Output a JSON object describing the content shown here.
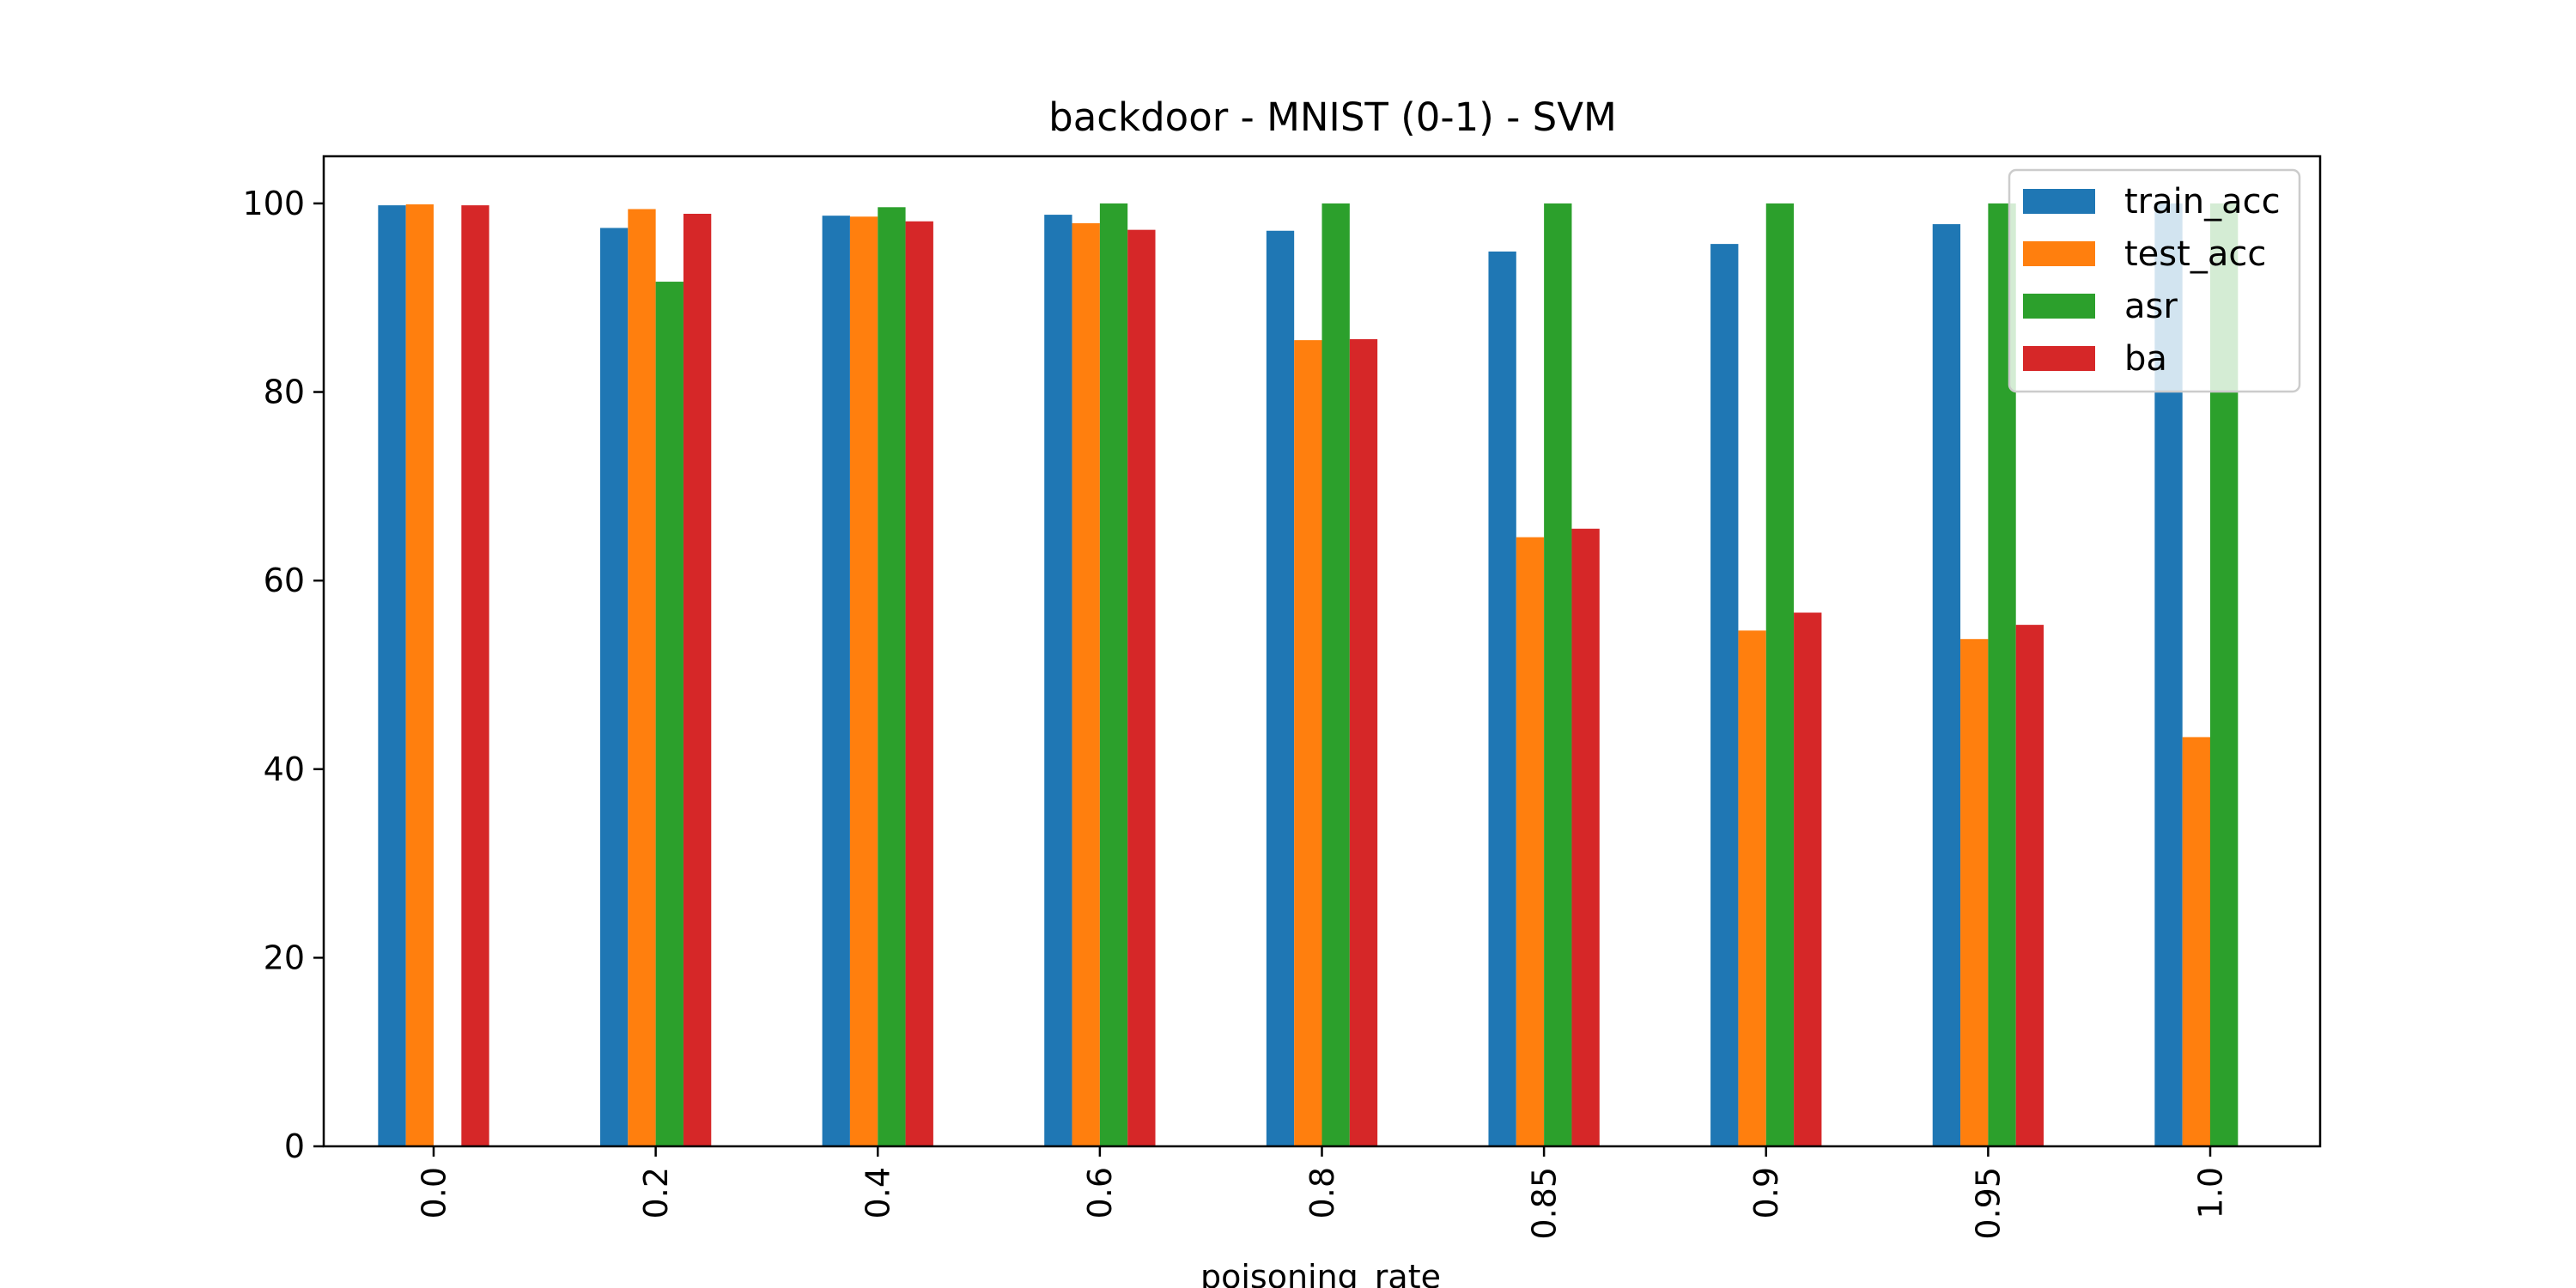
{
  "chart_data": {
    "type": "bar",
    "title": "backdoor - MNIST (0-1) - SVM",
    "xlabel": "poisoning_rate",
    "ylabel": "",
    "categories": [
      "0.0",
      "0.2",
      "0.4",
      "0.6",
      "0.8",
      "0.85",
      "0.9",
      "0.95",
      "1.0"
    ],
    "series": [
      {
        "name": "train_acc",
        "color": "#1f77b4",
        "values": [
          99.8,
          97.4,
          98.7,
          98.8,
          97.1,
          94.9,
          95.7,
          97.8,
          100.0
        ]
      },
      {
        "name": "test_acc",
        "color": "#ff7f0e",
        "values": [
          99.9,
          99.4,
          98.6,
          97.9,
          85.5,
          64.6,
          54.7,
          53.8,
          43.4
        ]
      },
      {
        "name": "asr",
        "color": "#2ca02c",
        "values": [
          0.0,
          91.7,
          99.6,
          100.0,
          100.0,
          100.0,
          100.0,
          100.0,
          100.0
        ]
      },
      {
        "name": "ba",
        "color": "#d62728",
        "values": [
          99.8,
          98.9,
          98.1,
          97.2,
          85.6,
          65.5,
          56.6,
          55.3,
          0.0
        ]
      }
    ],
    "ylim": [
      0,
      105
    ],
    "yticks": [
      0,
      20,
      40,
      60,
      80,
      100
    ],
    "grid": false,
    "legend_position": "top-right"
  }
}
